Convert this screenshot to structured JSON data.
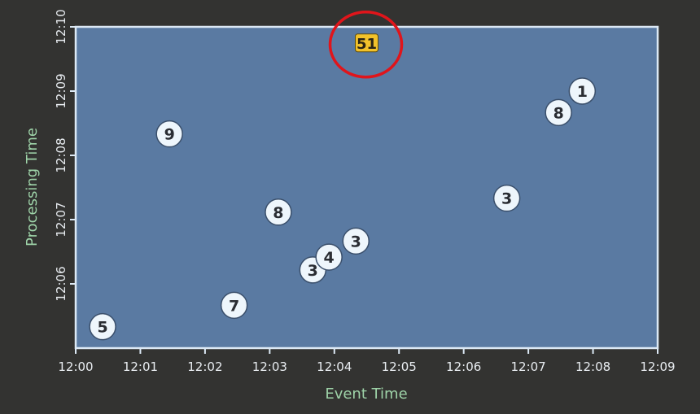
{
  "chart_data": {
    "type": "scatter",
    "xlabel": "Event Time",
    "ylabel": "Processing Time",
    "x_ticks": [
      "12:00",
      "12:01",
      "12:02",
      "12:03",
      "12:04",
      "12:05",
      "12:06",
      "12:07",
      "12:08",
      "12:09"
    ],
    "y_ticks": [
      "12:06",
      "12:07",
      "12:08",
      "12:09",
      "12:10"
    ],
    "x_range": [
      "12:00",
      "12:09"
    ],
    "y_range": [
      "12:05",
      "12:10"
    ],
    "grid": false,
    "plot_background": "#5a7aa2",
    "border_color": "#dce9f5",
    "label_color": "#9ed3a8",
    "tick_label_color": "#e8ecf0",
    "point_fill": "#eef6fc",
    "points": [
      {
        "x": "12:00:25",
        "y": "12:05:20",
        "value": "5"
      },
      {
        "x": "12:01:27",
        "y": "12:08:20",
        "value": "9"
      },
      {
        "x": "12:02:27",
        "y": "12:05:40",
        "value": "7"
      },
      {
        "x": "12:03:08",
        "y": "12:07:07",
        "value": "8"
      },
      {
        "x": "12:03:40",
        "y": "12:06:13",
        "value": "3"
      },
      {
        "x": "12:03:55",
        "y": "12:06:25",
        "value": "4"
      },
      {
        "x": "12:04:20",
        "y": "12:06:40",
        "value": "3"
      },
      {
        "x": "12:06:40",
        "y": "12:07:20",
        "value": "3"
      },
      {
        "x": "12:07:28",
        "y": "12:08:40",
        "value": "8"
      },
      {
        "x": "12:07:50",
        "y": "12:09:00",
        "value": "1"
      }
    ],
    "annotations": [
      {
        "text": "51",
        "x": "12:04:30",
        "y": "12:09:45",
        "style": "yellow-badge",
        "highlight": "red-circle",
        "badge_color": "#f2c22a",
        "circle_color": "#e0151b"
      }
    ]
  }
}
